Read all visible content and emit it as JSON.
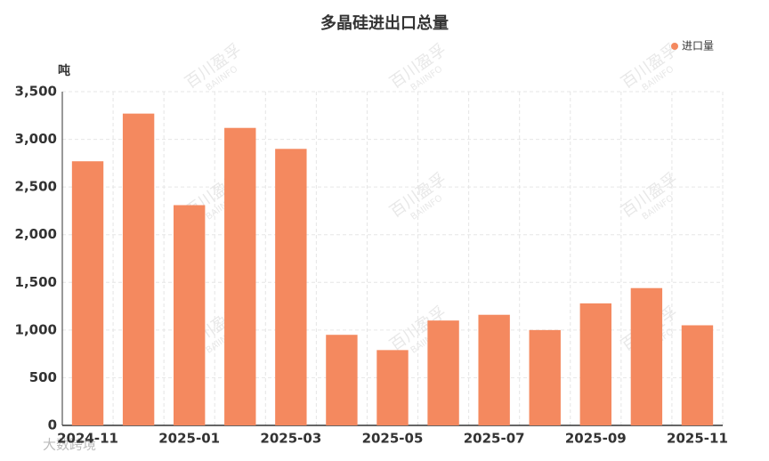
{
  "chart_data": {
    "type": "bar",
    "title": "多晶硅进出口总量",
    "y_label": "吨",
    "categories": [
      "2024-11",
      null,
      "2025-01",
      null,
      "2025-03",
      null,
      "2025-05",
      null,
      "2025-07",
      null,
      "2025-09",
      null,
      "2025-11"
    ],
    "series": [
      {
        "name": "进口量",
        "color": "#f4895f",
        "values": [
          2770,
          3270,
          2310,
          3120,
          2900,
          950,
          790,
          1100,
          1160,
          1000,
          1280,
          1440,
          1050
        ]
      }
    ],
    "ylim": [
      0,
      3500
    ],
    "yticks": [
      0,
      500,
      {
        "value": 1000,
        "label": "1,000"
      },
      {
        "value": 1500,
        "label": "1,500"
      },
      {
        "value": 2000,
        "label": "2,000"
      },
      {
        "value": 2500,
        "label": "2,500"
      },
      {
        "value": 3000,
        "label": "3,000"
      },
      {
        "value": 3500,
        "label": "3,500"
      }
    ],
    "grid": true,
    "legend": "top-right",
    "watermark": "百川盈孚",
    "watermark_sub": "BAIINFO",
    "footer": "大数跨境"
  }
}
